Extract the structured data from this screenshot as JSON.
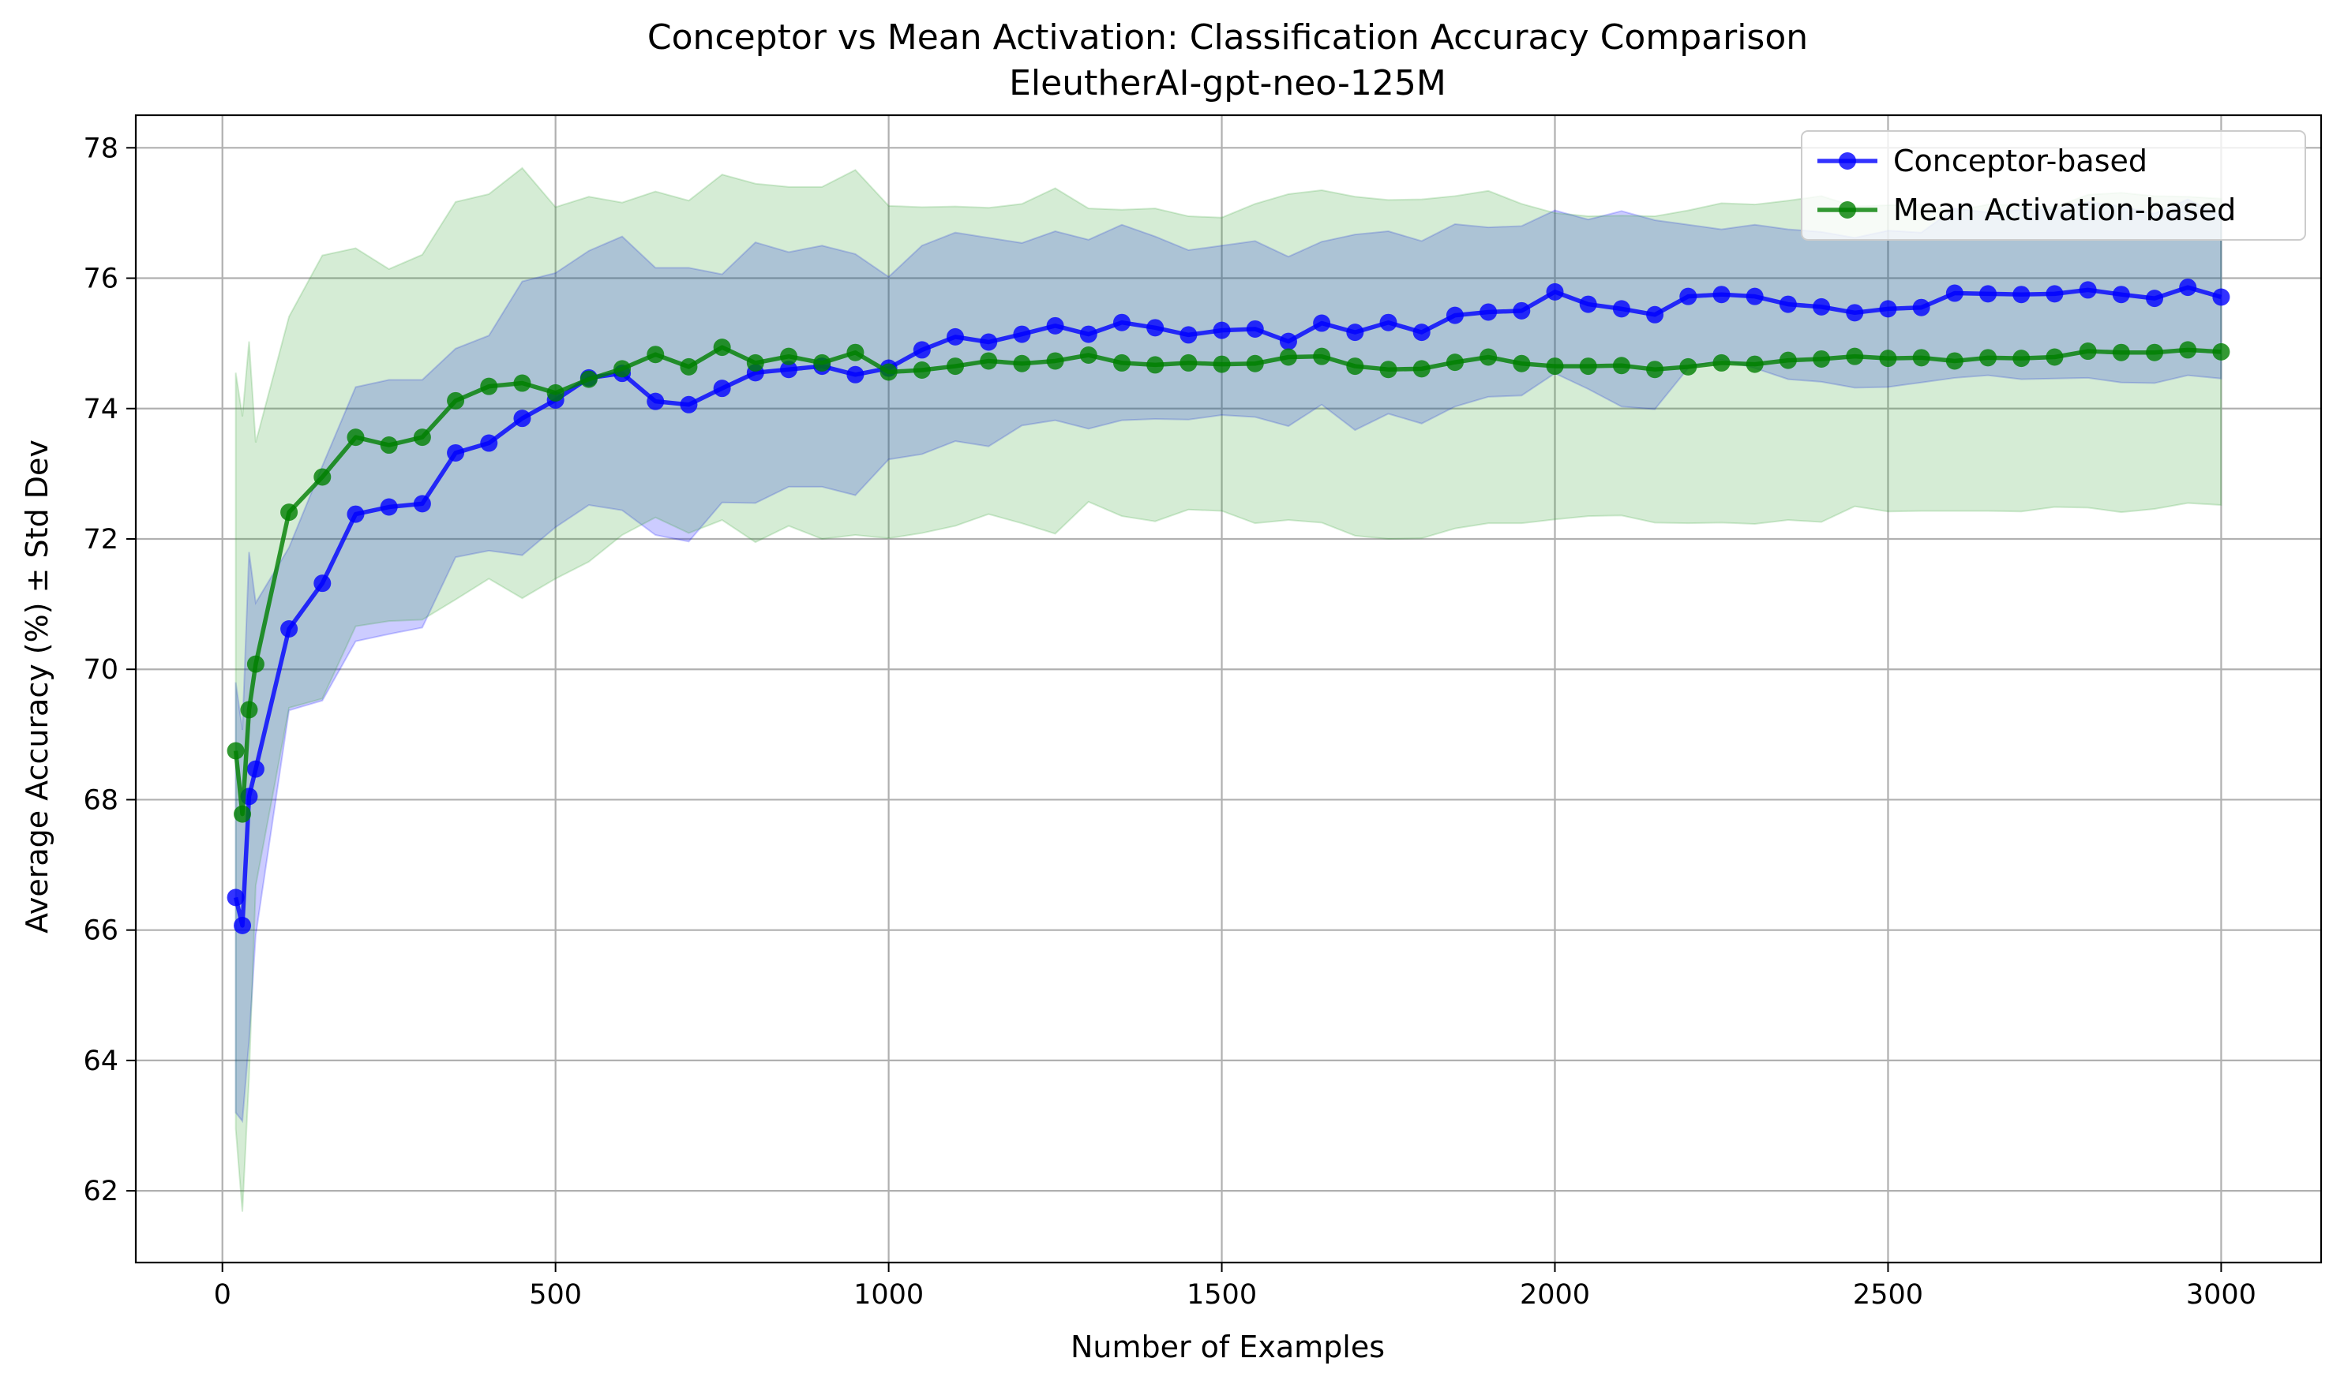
{
  "chart_data": {
    "type": "line",
    "title": "Conceptor vs Mean Activation: Classification Accuracy Comparison",
    "subtitle": "EleutherAI-gpt-neo-125M",
    "xlabel": "Number of Examples",
    "ylabel": "Average Accuracy (%) ± Std Dev",
    "xlim": [
      -130,
      3150
    ],
    "ylim": [
      60.9,
      78.5
    ],
    "xticks": [
      0,
      500,
      1000,
      1500,
      2000,
      2500,
      3000
    ],
    "yticks": [
      62,
      64,
      66,
      68,
      70,
      72,
      74,
      76,
      78
    ],
    "grid": true,
    "legend_position": "top-right",
    "x": [
      20,
      30,
      40,
      50,
      100,
      150,
      200,
      250,
      300,
      350,
      400,
      450,
      500,
      550,
      600,
      650,
      700,
      750,
      800,
      850,
      900,
      950,
      1000,
      1050,
      1100,
      1150,
      1200,
      1250,
      1300,
      1350,
      1400,
      1450,
      1500,
      1550,
      1600,
      1650,
      1700,
      1750,
      1800,
      1850,
      1900,
      1950,
      2000,
      2050,
      2100,
      2150,
      2200,
      2250,
      2300,
      2350,
      2400,
      2450,
      2500,
      2550,
      2600,
      2650,
      2700,
      2750,
      2800,
      2850,
      2900,
      2950,
      3000
    ],
    "series": [
      {
        "name": "Conceptor-based",
        "color": "#0000ff",
        "band_color": "#0000ff",
        "values": [
          66.5,
          66.07,
          68.05,
          68.47,
          70.62,
          71.32,
          72.38,
          72.49,
          72.54,
          73.32,
          73.47,
          73.85,
          74.13,
          74.47,
          74.54,
          74.11,
          74.06,
          74.31,
          74.55,
          74.6,
          74.65,
          74.52,
          74.62,
          74.9,
          75.1,
          75.02,
          75.14,
          75.27,
          75.14,
          75.32,
          75.24,
          75.13,
          75.2,
          75.22,
          75.03,
          75.31,
          75.17,
          75.32,
          75.17,
          75.43,
          75.48,
          75.5,
          75.79,
          75.6,
          75.53,
          75.44,
          75.72,
          75.75,
          75.72,
          75.6,
          75.56,
          75.47,
          75.53,
          75.55,
          75.77,
          75.76,
          75.75,
          75.76,
          75.82,
          75.75,
          75.69,
          75.86,
          75.71
        ],
        "std": [
          3.3,
          3.0,
          3.75,
          2.55,
          1.25,
          1.8,
          1.95,
          1.95,
          1.9,
          1.6,
          1.65,
          2.1,
          1.95,
          1.95,
          2.1,
          2.05,
          2.1,
          1.75,
          2.0,
          1.8,
          1.85,
          1.85,
          1.4,
          1.6,
          1.6,
          1.6,
          1.4,
          1.45,
          1.45,
          1.5,
          1.4,
          1.3,
          1.3,
          1.35,
          1.3,
          1.25,
          1.5,
          1.4,
          1.4,
          1.4,
          1.3,
          1.3,
          1.25,
          1.3,
          1.5,
          1.45,
          1.1,
          1.0,
          1.1,
          1.15,
          1.15,
          1.15,
          1.2,
          1.15,
          1.3,
          1.25,
          1.3,
          1.3,
          1.35,
          1.35,
          1.3,
          1.35,
          1.25
        ]
      },
      {
        "name": "Mean Activation-based",
        "color": "#008000",
        "band_color": "#2ca02c",
        "values": [
          68.75,
          67.78,
          69.38,
          70.08,
          72.41,
          72.95,
          73.56,
          73.44,
          73.56,
          74.12,
          74.34,
          74.39,
          74.24,
          74.45,
          74.61,
          74.83,
          74.64,
          74.94,
          74.7,
          74.8,
          74.7,
          74.86,
          74.56,
          74.59,
          74.65,
          74.73,
          74.69,
          74.73,
          74.82,
          74.7,
          74.67,
          74.7,
          74.68,
          74.69,
          74.79,
          74.8,
          74.65,
          74.6,
          74.61,
          74.71,
          74.79,
          74.69,
          74.65,
          74.65,
          74.66,
          74.6,
          74.64,
          74.7,
          74.68,
          74.74,
          74.76,
          74.8,
          74.77,
          74.78,
          74.73,
          74.78,
          74.77,
          74.79,
          74.88,
          74.86,
          74.86,
          74.9,
          74.87
        ],
        "std": [
          5.8,
          6.1,
          5.65,
          3.4,
          3.0,
          3.4,
          2.9,
          2.7,
          2.8,
          3.05,
          2.95,
          3.3,
          2.85,
          2.8,
          2.55,
          2.5,
          2.55,
          2.65,
          2.75,
          2.6,
          2.7,
          2.8,
          2.55,
          2.5,
          2.45,
          2.35,
          2.45,
          2.65,
          2.25,
          2.35,
          2.4,
          2.25,
          2.25,
          2.45,
          2.5,
          2.55,
          2.6,
          2.6,
          2.6,
          2.55,
          2.55,
          2.45,
          2.35,
          2.3,
          2.3,
          2.35,
          2.4,
          2.45,
          2.45,
          2.45,
          2.5,
          2.3,
          2.35,
          2.35,
          2.3,
          2.35,
          2.35,
          2.3,
          2.4,
          2.45,
          2.4,
          2.35,
          2.35
        ]
      }
    ]
  }
}
